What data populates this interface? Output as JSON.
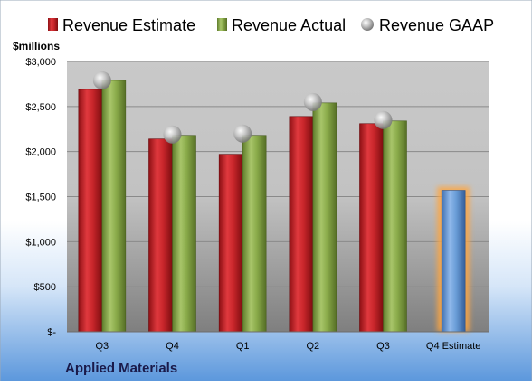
{
  "chart_data": {
    "type": "bar",
    "title": "",
    "ylabel": "$millions",
    "company": "Applied Materials",
    "categories": [
      "Q3",
      "Q4",
      "Q1",
      "Q2",
      "Q3",
      "Q4 Estimate"
    ],
    "ylim": [
      0,
      3000
    ],
    "yticks": [
      0,
      500,
      1000,
      1500,
      2000,
      2500,
      3000
    ],
    "ytick_labels": [
      "$-",
      "$500",
      "$1,000",
      "$1,500",
      "$2,000",
      "$2,500",
      "$3,000"
    ],
    "grid": true,
    "legend_position": "top",
    "series": [
      {
        "name": "Revenue Estimate",
        "kind": "bar",
        "color": "#c0262c",
        "values": [
          2690,
          2140,
          1970,
          2390,
          2310,
          null
        ]
      },
      {
        "name": "Revenue Actual",
        "kind": "bar",
        "color": "#8aab4a",
        "values": [
          2790,
          2180,
          2180,
          2540,
          2340,
          null
        ]
      },
      {
        "name": "Revenue GAAP",
        "kind": "marker",
        "color": "#b8b8b8",
        "values": [
          2790,
          2190,
          2200,
          2550,
          2350,
          null
        ]
      },
      {
        "name": "Q4 Estimate",
        "kind": "highlight-bar",
        "color": "#6b9ed8",
        "values": [
          null,
          null,
          null,
          null,
          null,
          1570
        ]
      }
    ]
  }
}
